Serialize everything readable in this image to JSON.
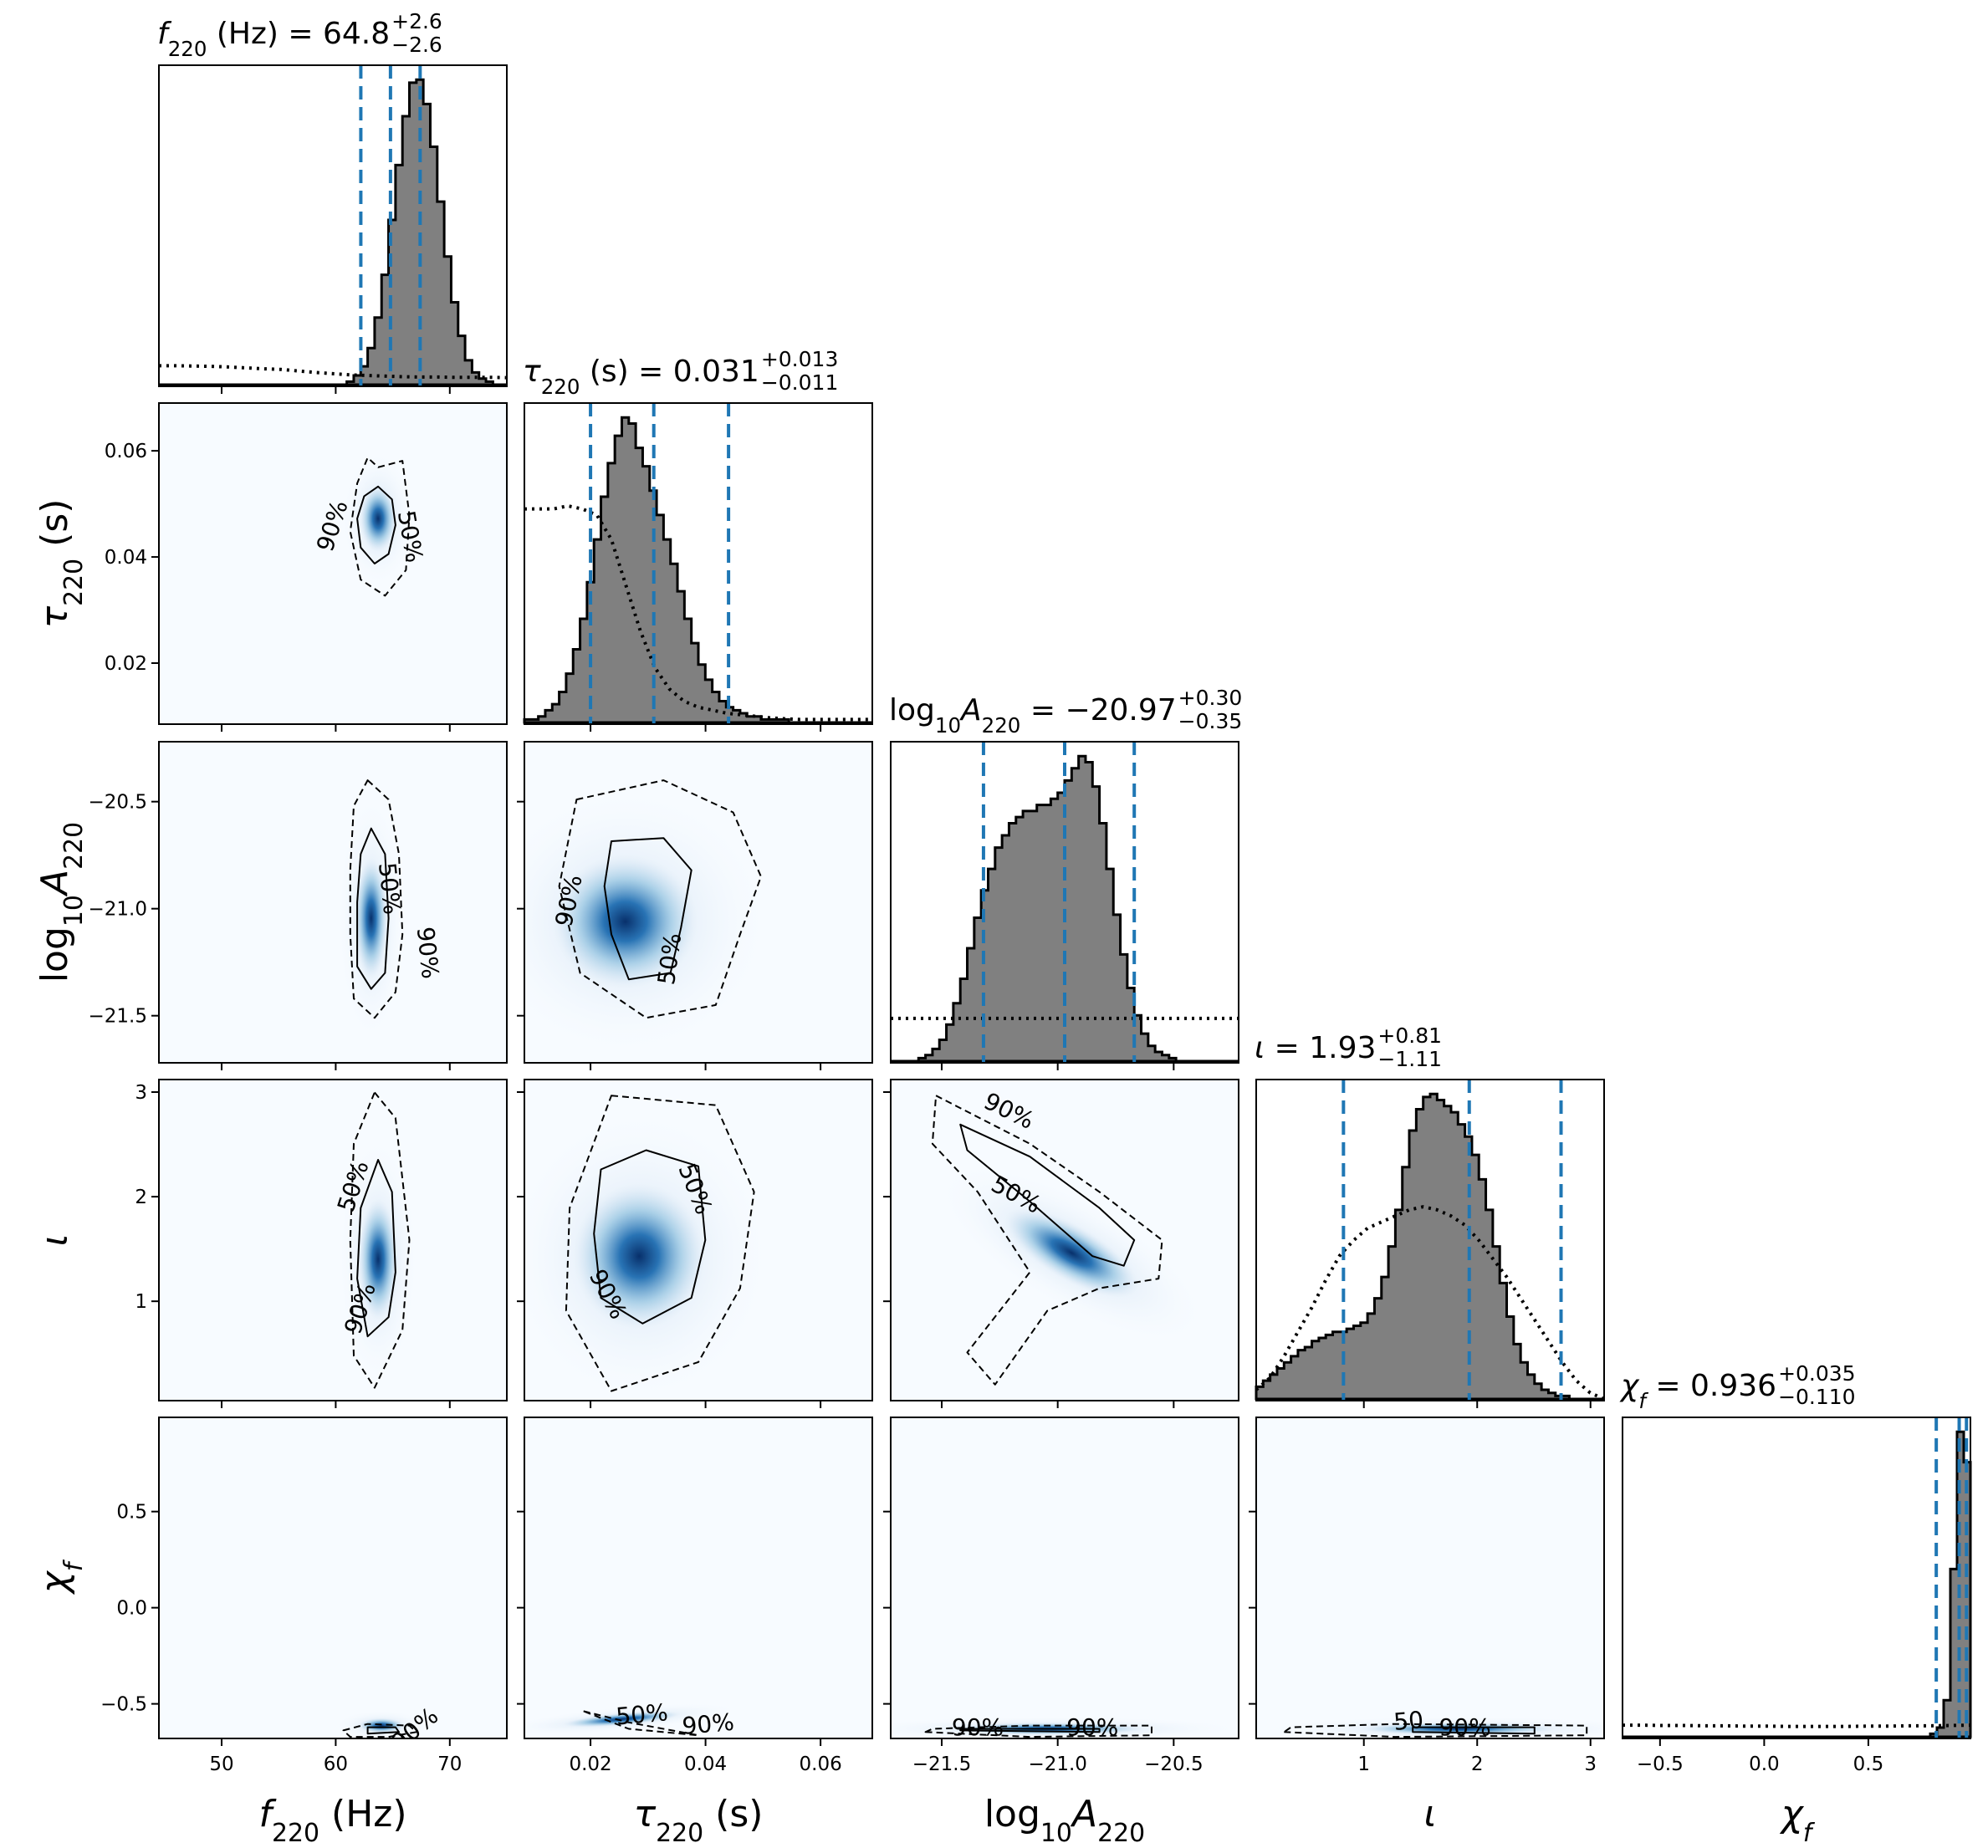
{
  "chart_data": {
    "type": "corner",
    "parameters": [
      {
        "key": "f220",
        "label": "f220 (Hz)",
        "median": "64.8",
        "plus": "+2.6",
        "minus": "−2.6",
        "lo": 62.2,
        "mid": 64.8,
        "hi": 67.4,
        "range": [
          44.5,
          75
        ],
        "ticks": [
          50,
          60,
          70
        ],
        "tick_labels": [
          "50",
          "60",
          "70"
        ]
      },
      {
        "key": "tau220",
        "label": "τ220 (s)",
        "median": "0.031",
        "plus": "+0.013",
        "minus": "−0.011",
        "lo": 0.02,
        "mid": 0.031,
        "hi": 0.044,
        "range": [
          0.0085,
          0.069
        ],
        "ticks": [
          0.02,
          0.04,
          0.06
        ],
        "tick_labels": [
          "0.02",
          "0.04",
          "0.06"
        ]
      },
      {
        "key": "logA",
        "label": "log10A220",
        "median": "−20.97",
        "plus": "+0.30",
        "minus": "−0.35",
        "lo": -21.32,
        "mid": -20.97,
        "hi": -20.67,
        "range": [
          -21.72,
          -20.22
        ],
        "ticks": [
          -21.5,
          -21.0,
          -20.5
        ],
        "tick_labels": [
          "−21.5",
          "−21.0",
          "−20.5"
        ]
      },
      {
        "key": "iota",
        "label": "ι",
        "median": "1.93",
        "plus": "+0.81",
        "minus": "−1.11",
        "lo": 0.82,
        "mid": 1.93,
        "hi": 2.74,
        "range": [
          0.05,
          3.12
        ],
        "ticks": [
          1,
          2,
          3
        ],
        "tick_labels": [
          "1",
          "2",
          "3"
        ]
      },
      {
        "key": "chif",
        "label": "χf",
        "median": "0.936",
        "plus": "+0.035",
        "minus": "−0.110",
        "lo": 0.826,
        "mid": 0.936,
        "hi": 0.971,
        "range": [
          -0.68,
          0.99
        ],
        "ticks": [
          -0.5,
          0.0,
          0.5
        ],
        "tick_labels": [
          "−0.5",
          "0.0",
          "0.5"
        ]
      }
    ],
    "contour_levels": [
      "50%",
      "90%"
    ],
    "colors": {
      "hist_fill": "#808080",
      "hist_edge": "#000000",
      "quantile_line": "#1f77b4",
      "density_light": "#f7fbff",
      "density_dark": "#08306b"
    },
    "histograms": {
      "f220": [
        0,
        0,
        0,
        0,
        0,
        0,
        0,
        0,
        0,
        0,
        0,
        0,
        0,
        0,
        0,
        0,
        0,
        0,
        0,
        0,
        0,
        0,
        0,
        0,
        0,
        0,
        0,
        0.01,
        0.03,
        0.06,
        0.12,
        0.22,
        0.36,
        0.54,
        0.72,
        0.88,
        0.99,
        1.0,
        0.92,
        0.78,
        0.6,
        0.42,
        0.27,
        0.16,
        0.08,
        0.04,
        0.02,
        0.01,
        0,
        0
      ],
      "tau220": [
        0.01,
        0.01,
        0.02,
        0.04,
        0.06,
        0.1,
        0.16,
        0.24,
        0.34,
        0.46,
        0.6,
        0.74,
        0.85,
        0.94,
        1.0,
        0.98,
        0.9,
        0.84,
        0.76,
        0.68,
        0.6,
        0.52,
        0.43,
        0.34,
        0.26,
        0.19,
        0.14,
        0.1,
        0.07,
        0.05,
        0.04,
        0.03,
        0.02,
        0.02,
        0.01,
        0.01,
        0.01,
        0.01,
        0,
        0,
        0,
        0,
        0,
        0,
        0,
        0,
        0,
        0,
        0,
        0
      ],
      "logA": [
        0,
        0,
        0,
        0,
        0.01,
        0.02,
        0.04,
        0.07,
        0.12,
        0.19,
        0.27,
        0.37,
        0.47,
        0.56,
        0.63,
        0.7,
        0.74,
        0.78,
        0.8,
        0.82,
        0.82,
        0.84,
        0.84,
        0.86,
        0.88,
        0.92,
        0.96,
        1.0,
        0.98,
        0.9,
        0.78,
        0.63,
        0.48,
        0.35,
        0.24,
        0.15,
        0.09,
        0.05,
        0.03,
        0.02,
        0.01,
        0,
        0,
        0,
        0,
        0,
        0,
        0,
        0,
        0
      ],
      "iota": [
        0.04,
        0.06,
        0.08,
        0.1,
        0.12,
        0.14,
        0.16,
        0.17,
        0.19,
        0.2,
        0.21,
        0.22,
        0.22,
        0.23,
        0.24,
        0.25,
        0.28,
        0.33,
        0.4,
        0.5,
        0.62,
        0.76,
        0.88,
        0.95,
        0.99,
        1.0,
        0.98,
        0.96,
        0.94,
        0.9,
        0.86,
        0.8,
        0.72,
        0.62,
        0.5,
        0.38,
        0.27,
        0.18,
        0.12,
        0.08,
        0.05,
        0.03,
        0.02,
        0.01,
        0.01,
        0,
        0,
        0,
        0,
        0
      ],
      "chif": [
        0,
        0,
        0,
        0,
        0,
        0,
        0,
        0,
        0,
        0,
        0,
        0,
        0,
        0,
        0,
        0,
        0,
        0,
        0,
        0,
        0,
        0,
        0,
        0,
        0,
        0,
        0,
        0,
        0,
        0,
        0,
        0,
        0,
        0,
        0,
        0,
        0,
        0,
        0,
        0,
        0,
        0,
        0,
        0,
        0,
        0,
        0.01,
        0.03,
        0.12,
        0.55,
        1.0,
        0.9
      ]
    },
    "priors": {
      "f220": [
        0.062,
        0.062,
        0.061,
        0.06,
        0.058,
        0.055,
        0.052,
        0.05,
        0.045,
        0.04,
        0.036,
        0.032,
        0.03,
        0.028,
        0.026,
        0.025,
        0.025,
        0.024,
        0.024,
        0.024,
        0.023
      ],
      "tau220": [
        0.7,
        0.7,
        0.7,
        0.71,
        0.7,
        0.68,
        0.6,
        0.45,
        0.3,
        0.18,
        0.11,
        0.07,
        0.05,
        0.04,
        0.03,
        0.025,
        0.02,
        0.015,
        0.012,
        0.01,
        0.01,
        0.01,
        0.01,
        0.01,
        0.01
      ],
      "logA": [
        0.14,
        0.14,
        0.14,
        0.14,
        0.14,
        0.14,
        0.14,
        0.14,
        0.14,
        0.14,
        0.14,
        0.14,
        0.14
      ],
      "iota": [
        0.03,
        0.07,
        0.14,
        0.22,
        0.3,
        0.39,
        0.47,
        0.52,
        0.56,
        0.58,
        0.6,
        0.62,
        0.63,
        0.62,
        0.6,
        0.57,
        0.52,
        0.46,
        0.4,
        0.33,
        0.26,
        0.19,
        0.12,
        0.06,
        0.02,
        0.0
      ],
      "chif": [
        0.038,
        0.038,
        0.037,
        0.037,
        0.036,
        0.036,
        0.035,
        0.035,
        0.034,
        0.034,
        0.034,
        0.034,
        0.035,
        0.035,
        0.036,
        0.036,
        0.037,
        0.038
      ]
    }
  }
}
